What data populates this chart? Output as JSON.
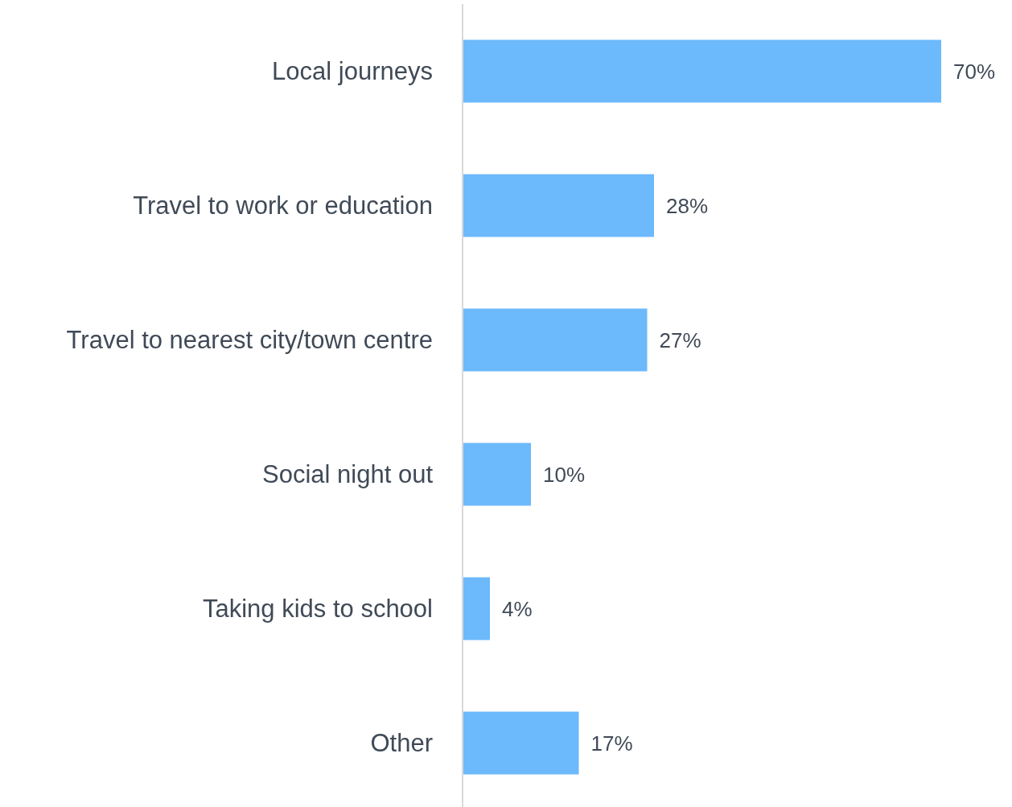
{
  "chart_data": {
    "type": "bar",
    "orientation": "horizontal",
    "categories": [
      "Local journeys",
      "Travel to work or education",
      "Travel to nearest city/town centre",
      "Social night out",
      "Taking kids to school",
      "Other"
    ],
    "values": [
      70,
      28,
      27,
      10,
      4,
      17
    ],
    "value_labels": [
      "70%",
      "28%",
      "27%",
      "10%",
      "4%",
      "17%"
    ],
    "color": "#6cb9fc"
  }
}
